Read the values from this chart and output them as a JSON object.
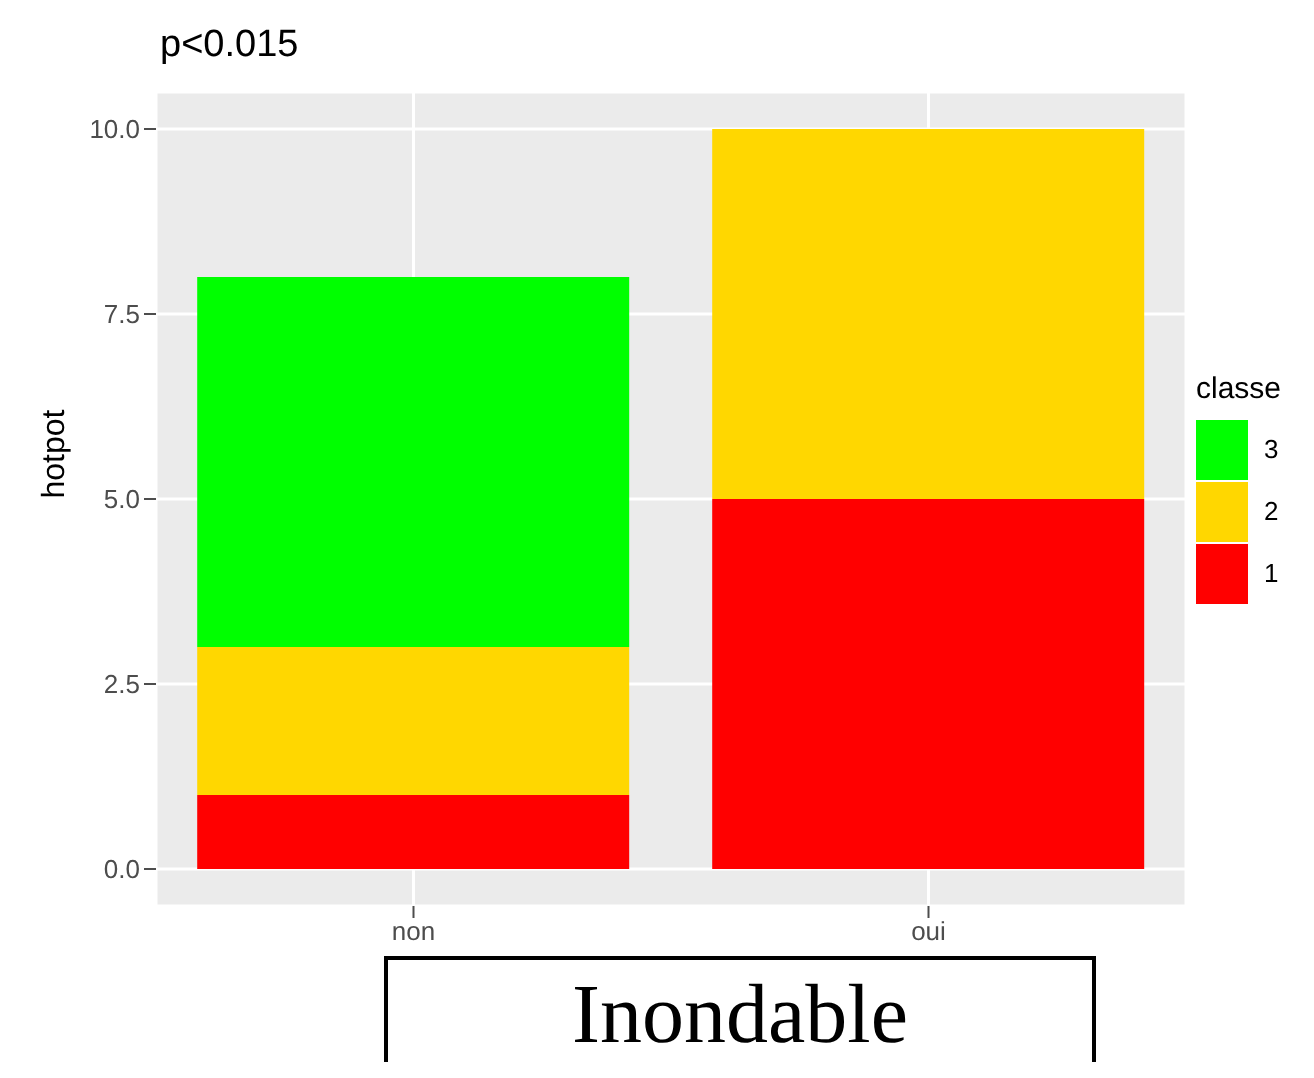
{
  "chart_data": {
    "type": "bar",
    "title": "p<0.015",
    "xlabel": "Inondable",
    "ylabel": "hotpot",
    "legend_title": "classe",
    "categories": [
      "non",
      "oui"
    ],
    "stacked": true,
    "series": [
      {
        "name": "1",
        "color": "#ff0000",
        "values": [
          1,
          5
        ]
      },
      {
        "name": "2",
        "color": "#ffd700",
        "values": [
          2,
          5
        ]
      },
      {
        "name": "3",
        "color": "#00ff00",
        "values": [
          5,
          0
        ]
      }
    ],
    "ylim": [
      -0.5,
      10.5
    ],
    "yticks": [
      {
        "value": 0,
        "label": "0.0"
      },
      {
        "value": 2.5,
        "label": "2.5"
      },
      {
        "value": 5,
        "label": "5.0"
      },
      {
        "value": 7.5,
        "label": "7.5"
      },
      {
        "value": 10,
        "label": "10.0"
      }
    ],
    "grid": true,
    "legend": "right"
  }
}
